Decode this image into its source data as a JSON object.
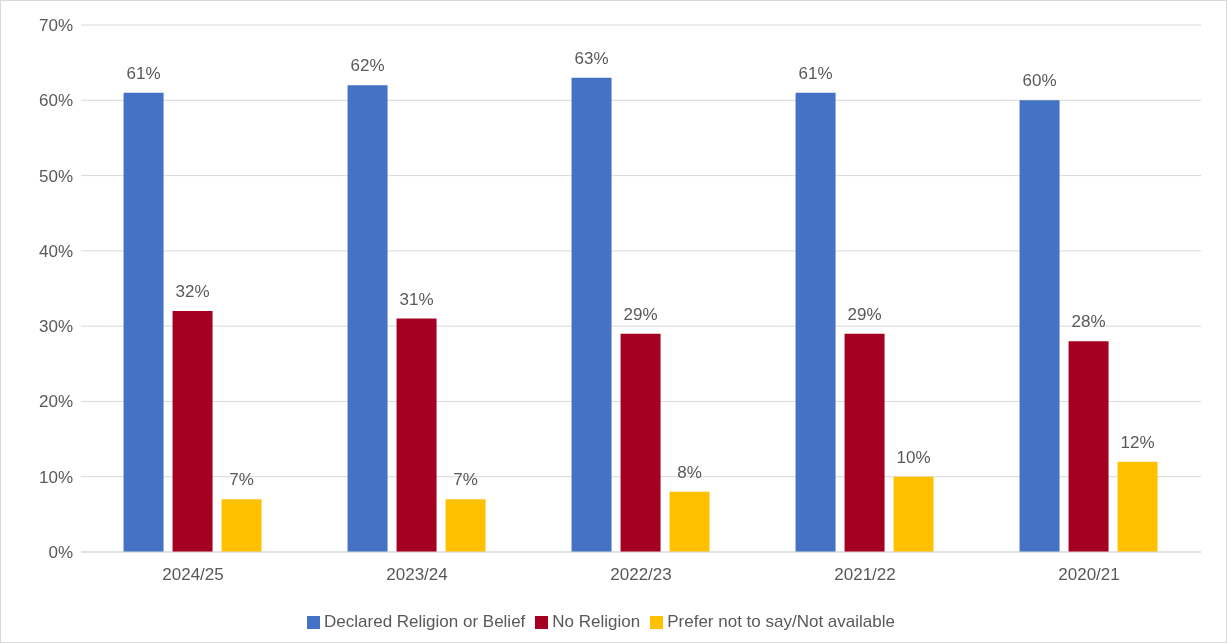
{
  "chart_data": {
    "type": "bar",
    "categories": [
      "2024/25",
      "2023/24",
      "2022/23",
      "2021/22",
      "2020/21"
    ],
    "series": [
      {
        "name": "Declared Religion or Belief",
        "color": "#4472c4",
        "values": [
          61,
          62,
          63,
          61,
          60
        ],
        "value_labels": [
          "61%",
          "62%",
          "63%",
          "61%",
          "60%"
        ]
      },
      {
        "name": "No Religion",
        "color": "#a50021",
        "values": [
          32,
          31,
          29,
          29,
          28
        ],
        "value_labels": [
          "32%",
          "31%",
          "29%",
          "29%",
          "28%"
        ]
      },
      {
        "name": "Prefer not to say/Not available",
        "color": "#ffc000",
        "values": [
          7,
          7,
          8,
          10,
          12
        ],
        "value_labels": [
          "7%",
          "7%",
          "8%",
          "10%",
          "12%"
        ]
      }
    ],
    "ylim": [
      0,
      70
    ],
    "yticks": [
      {
        "value": 0,
        "label": "0%"
      },
      {
        "value": 10,
        "label": "10%"
      },
      {
        "value": 20,
        "label": "20%"
      },
      {
        "value": 30,
        "label": "30%"
      },
      {
        "value": 40,
        "label": "40%"
      },
      {
        "value": 50,
        "label": "50%"
      },
      {
        "value": 60,
        "label": "60%"
      },
      {
        "value": 70,
        "label": "70%"
      }
    ],
    "grid": "y",
    "legend": "bottom"
  }
}
